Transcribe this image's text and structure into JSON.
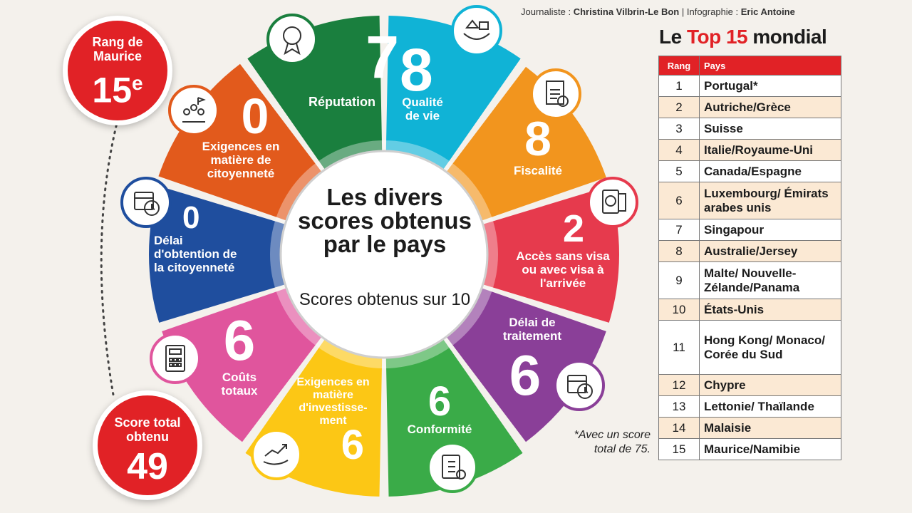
{
  "credit": {
    "journalist_label": "Journaliste : ",
    "journalist": "Christina Vilbrin-Le Bon",
    "separator": " | Infographie : ",
    "designer": "Eric Antoine"
  },
  "badges": {
    "rank_label": "Rang de Maurice",
    "rank_value": "15",
    "rank_suffix": "e",
    "score_label": "Score total obtenu",
    "score_value": "49"
  },
  "center": {
    "title": "Les divers scores obtenus par le pays",
    "subtitle": "Scores obtenus sur 10"
  },
  "segments": [
    {
      "label": "Réputation",
      "score": 7,
      "color": "#1a7f3e",
      "icon": "award-ribbon-icon"
    },
    {
      "label": "Qualité de vie",
      "score": 8,
      "color": "#10b3d6",
      "icon": "home-family-hands-icon"
    },
    {
      "label": "Fiscalité",
      "score": 8,
      "color": "#f2951e",
      "icon": "tax-document-icon"
    },
    {
      "label": "Accès sans visa ou avec visa à l'arrivée",
      "score": 2,
      "color": "#e63a4d",
      "icon": "passport-icon"
    },
    {
      "label": "Délai de traitement",
      "score": 6,
      "color": "#8a3f98",
      "icon": "calendar-clock-icon"
    },
    {
      "label": "Conformité",
      "score": 6,
      "color": "#3aab48",
      "icon": "clipboard-checklist-icon"
    },
    {
      "label": "Exigences en matière d'investisse-ment",
      "score": 6,
      "color": "#fcc715",
      "icon": "growth-chart-hand-icon"
    },
    {
      "label": "Coûts totaux",
      "score": 6,
      "color": "#e0559d",
      "icon": "calculator-icon"
    },
    {
      "label": "Délai d'obtention de la citoyenneté",
      "score": 0,
      "color": "#1f4e9e",
      "icon": "calendar-clock-icon"
    },
    {
      "label": "Exigences en matière de citoyenneté",
      "score": 0,
      "color": "#e25a1c",
      "icon": "people-flag-icon"
    }
  ],
  "top15": {
    "title_pre": "Le ",
    "title_red": "Top 15",
    "title_post": " mondial",
    "col_rank": "Rang",
    "col_country": "Pays",
    "rows": [
      {
        "rank": "1",
        "country": "Portugal*"
      },
      {
        "rank": "2",
        "country": "Autriche/Grèce"
      },
      {
        "rank": "3",
        "country": "Suisse"
      },
      {
        "rank": "4",
        "country": "Italie/Royaume-Uni"
      },
      {
        "rank": "5",
        "country": "Canada/Espagne"
      },
      {
        "rank": "6",
        "country": "Luxembourg/ Émirats arabes unis"
      },
      {
        "rank": "7",
        "country": "Singapour"
      },
      {
        "rank": "8",
        "country": "Australie/Jersey"
      },
      {
        "rank": "9",
        "country": "Malte/ Nouvelle-Zélande/Panama"
      },
      {
        "rank": "10",
        "country": "États-Unis"
      },
      {
        "rank": "11",
        "country": "Hong Kong/ Monaco/ Corée du Sud"
      },
      {
        "rank": "12",
        "country": "Chypre"
      },
      {
        "rank": "13",
        "country": "Lettonie/ Thaïlande"
      },
      {
        "rank": "14",
        "country": "Malaisie"
      },
      {
        "rank": "15",
        "country": "Maurice/Namibie"
      }
    ],
    "footnote": "*Avec un score total de 75."
  }
}
